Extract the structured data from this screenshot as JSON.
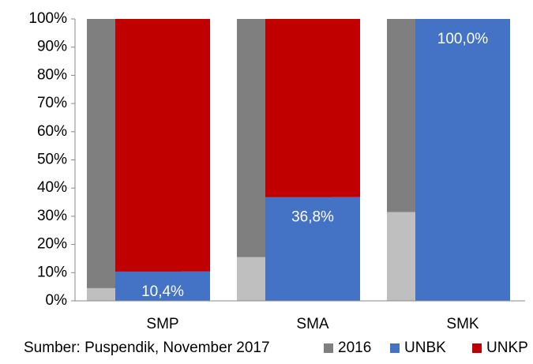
{
  "chart_data": {
    "type": "stacked_bar",
    "categories": [
      "SMP",
      "SMA",
      "SMK"
    ],
    "background_series": [
      {
        "color": "#bfbfbf",
        "values": [
          4.5,
          15.5,
          31.5
        ]
      },
      {
        "name": "2016",
        "color": "#7f7f7f",
        "values": [
          95.5,
          84.5,
          68.5
        ]
      }
    ],
    "series": [
      {
        "name": "UNBK",
        "color": "#4472c4",
        "values": [
          10.4,
          36.8,
          100
        ],
        "value_labels": [
          "10,4%",
          "36,8%",
          "100,0%"
        ]
      },
      {
        "name": "UNKP",
        "color": "#c00000",
        "values": [
          89.6,
          63.2,
          0
        ]
      }
    ],
    "ylim": [
      0,
      100
    ],
    "yticks": [
      {
        "value": 0,
        "label": "0%"
      },
      {
        "value": 10,
        "label": "10%"
      },
      {
        "value": 20,
        "label": "20%"
      },
      {
        "value": 30,
        "label": "30%"
      },
      {
        "value": 40,
        "label": "40%"
      },
      {
        "value": 50,
        "label": "50%"
      },
      {
        "value": 60,
        "label": "60%"
      },
      {
        "value": 70,
        "label": "70%"
      },
      {
        "value": 80,
        "label": "80%"
      },
      {
        "value": 90,
        "label": "90%"
      },
      {
        "value": 100,
        "label": "100%"
      }
    ],
    "source": "Sumber: Puspendik, November 2017"
  }
}
